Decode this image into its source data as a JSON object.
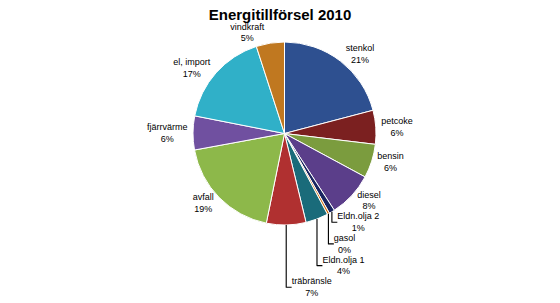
{
  "chart_data": {
    "type": "pie",
    "title": "Energitillförsel 2010",
    "categories": [
      "stenkol",
      "petcoke",
      "bensin",
      "diesel",
      "Eldn.olja 2",
      "gasol",
      "Eldn.olja 1",
      "träbränsle",
      "avfall",
      "fjärrvärme",
      "el, import",
      "vindkraft"
    ],
    "values": [
      21,
      6,
      6,
      8,
      1,
      0.4,
      4,
      7,
      19,
      6,
      17,
      5
    ],
    "value_labels": [
      "21%",
      "6%",
      "6%",
      "8%",
      "1%",
      "0%",
      "4%",
      "7%",
      "19%",
      "6%",
      "17%",
      "5%"
    ],
    "colors": [
      "#2E5090",
      "#7B2020",
      "#7B9C3E",
      "#5B3E8A",
      "#1A2560",
      "#D07010",
      "#1A6B7A",
      "#B03030",
      "#8DB84A",
      "#7050A0",
      "#30B0C8",
      "#C07820"
    ],
    "data_labels": true
  }
}
